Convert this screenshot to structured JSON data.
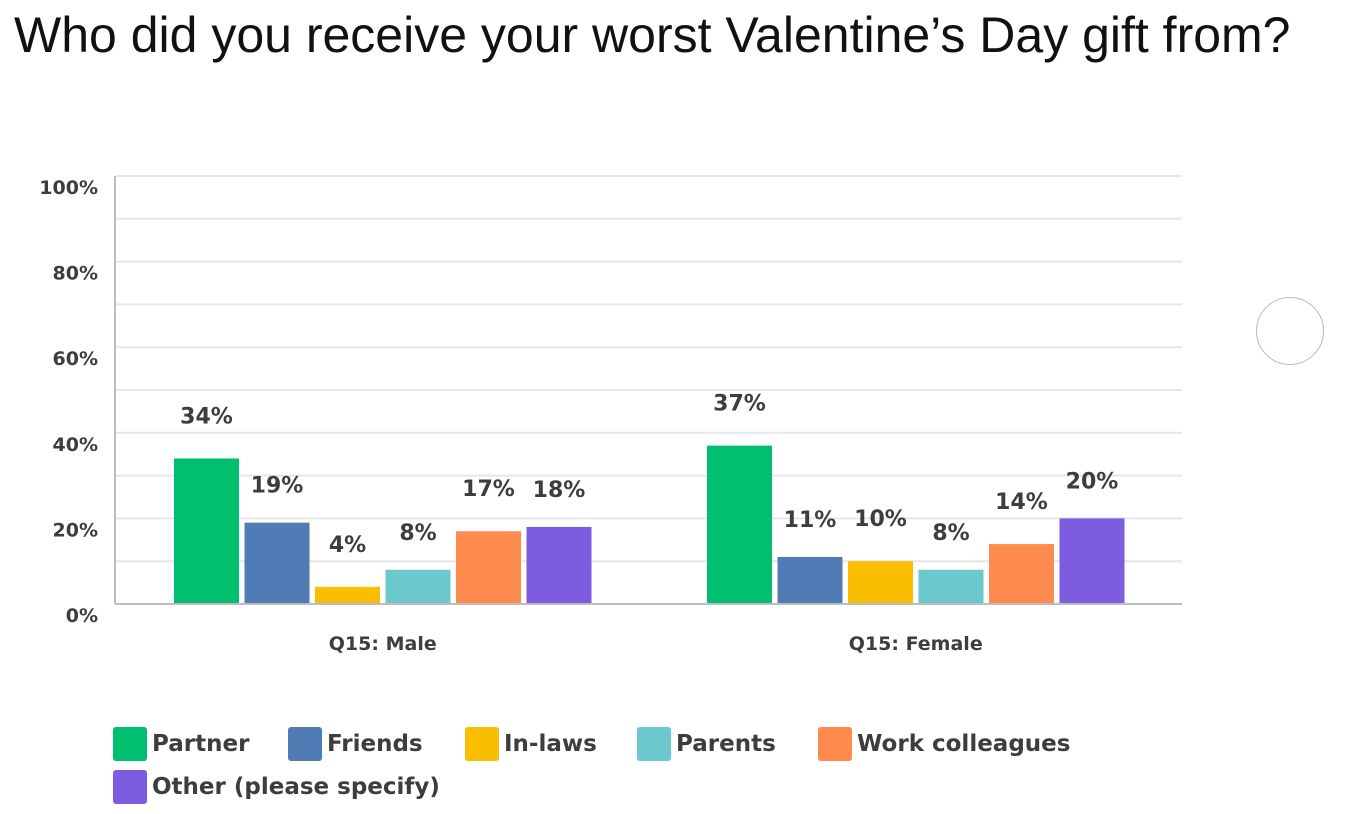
{
  "chart_data": {
    "type": "bar",
    "title": "Who did you receive your worst Valentine’s Day gift from?",
    "categories": [
      "Q15: Male",
      "Q15: Female"
    ],
    "series": [
      {
        "name": "Partner",
        "color": "#00bf6f",
        "values": [
          34,
          37
        ],
        "labels": [
          "34%",
          "37%"
        ]
      },
      {
        "name": "Friends",
        "color": "#507cb6",
        "values": [
          19,
          11
        ],
        "labels": [
          "19%",
          "11%"
        ]
      },
      {
        "name": "In-laws",
        "color": "#f9be00",
        "values": [
          4,
          10
        ],
        "labels": [
          "4%",
          "10%"
        ]
      },
      {
        "name": "Parents",
        "color": "#6bc8cd",
        "values": [
          8,
          8
        ],
        "labels": [
          "8%",
          "8%"
        ]
      },
      {
        "name": "Work colleagues",
        "color": "#ff8b4f",
        "values": [
          17,
          14
        ],
        "labels": [
          "17%",
          "14%"
        ]
      },
      {
        "name": "Other (please specify)",
        "color": "#7d5ce0",
        "values": [
          18,
          20
        ],
        "labels": [
          "18%",
          "20%"
        ]
      }
    ],
    "ylim": [
      0,
      100
    ],
    "yticks": [
      "0%",
      "20%",
      "40%",
      "60%",
      "80%",
      "100%"
    ],
    "ytick_values": [
      0,
      20,
      40,
      60,
      80,
      100
    ],
    "grid": true,
    "legend_position": "bottom-left"
  }
}
